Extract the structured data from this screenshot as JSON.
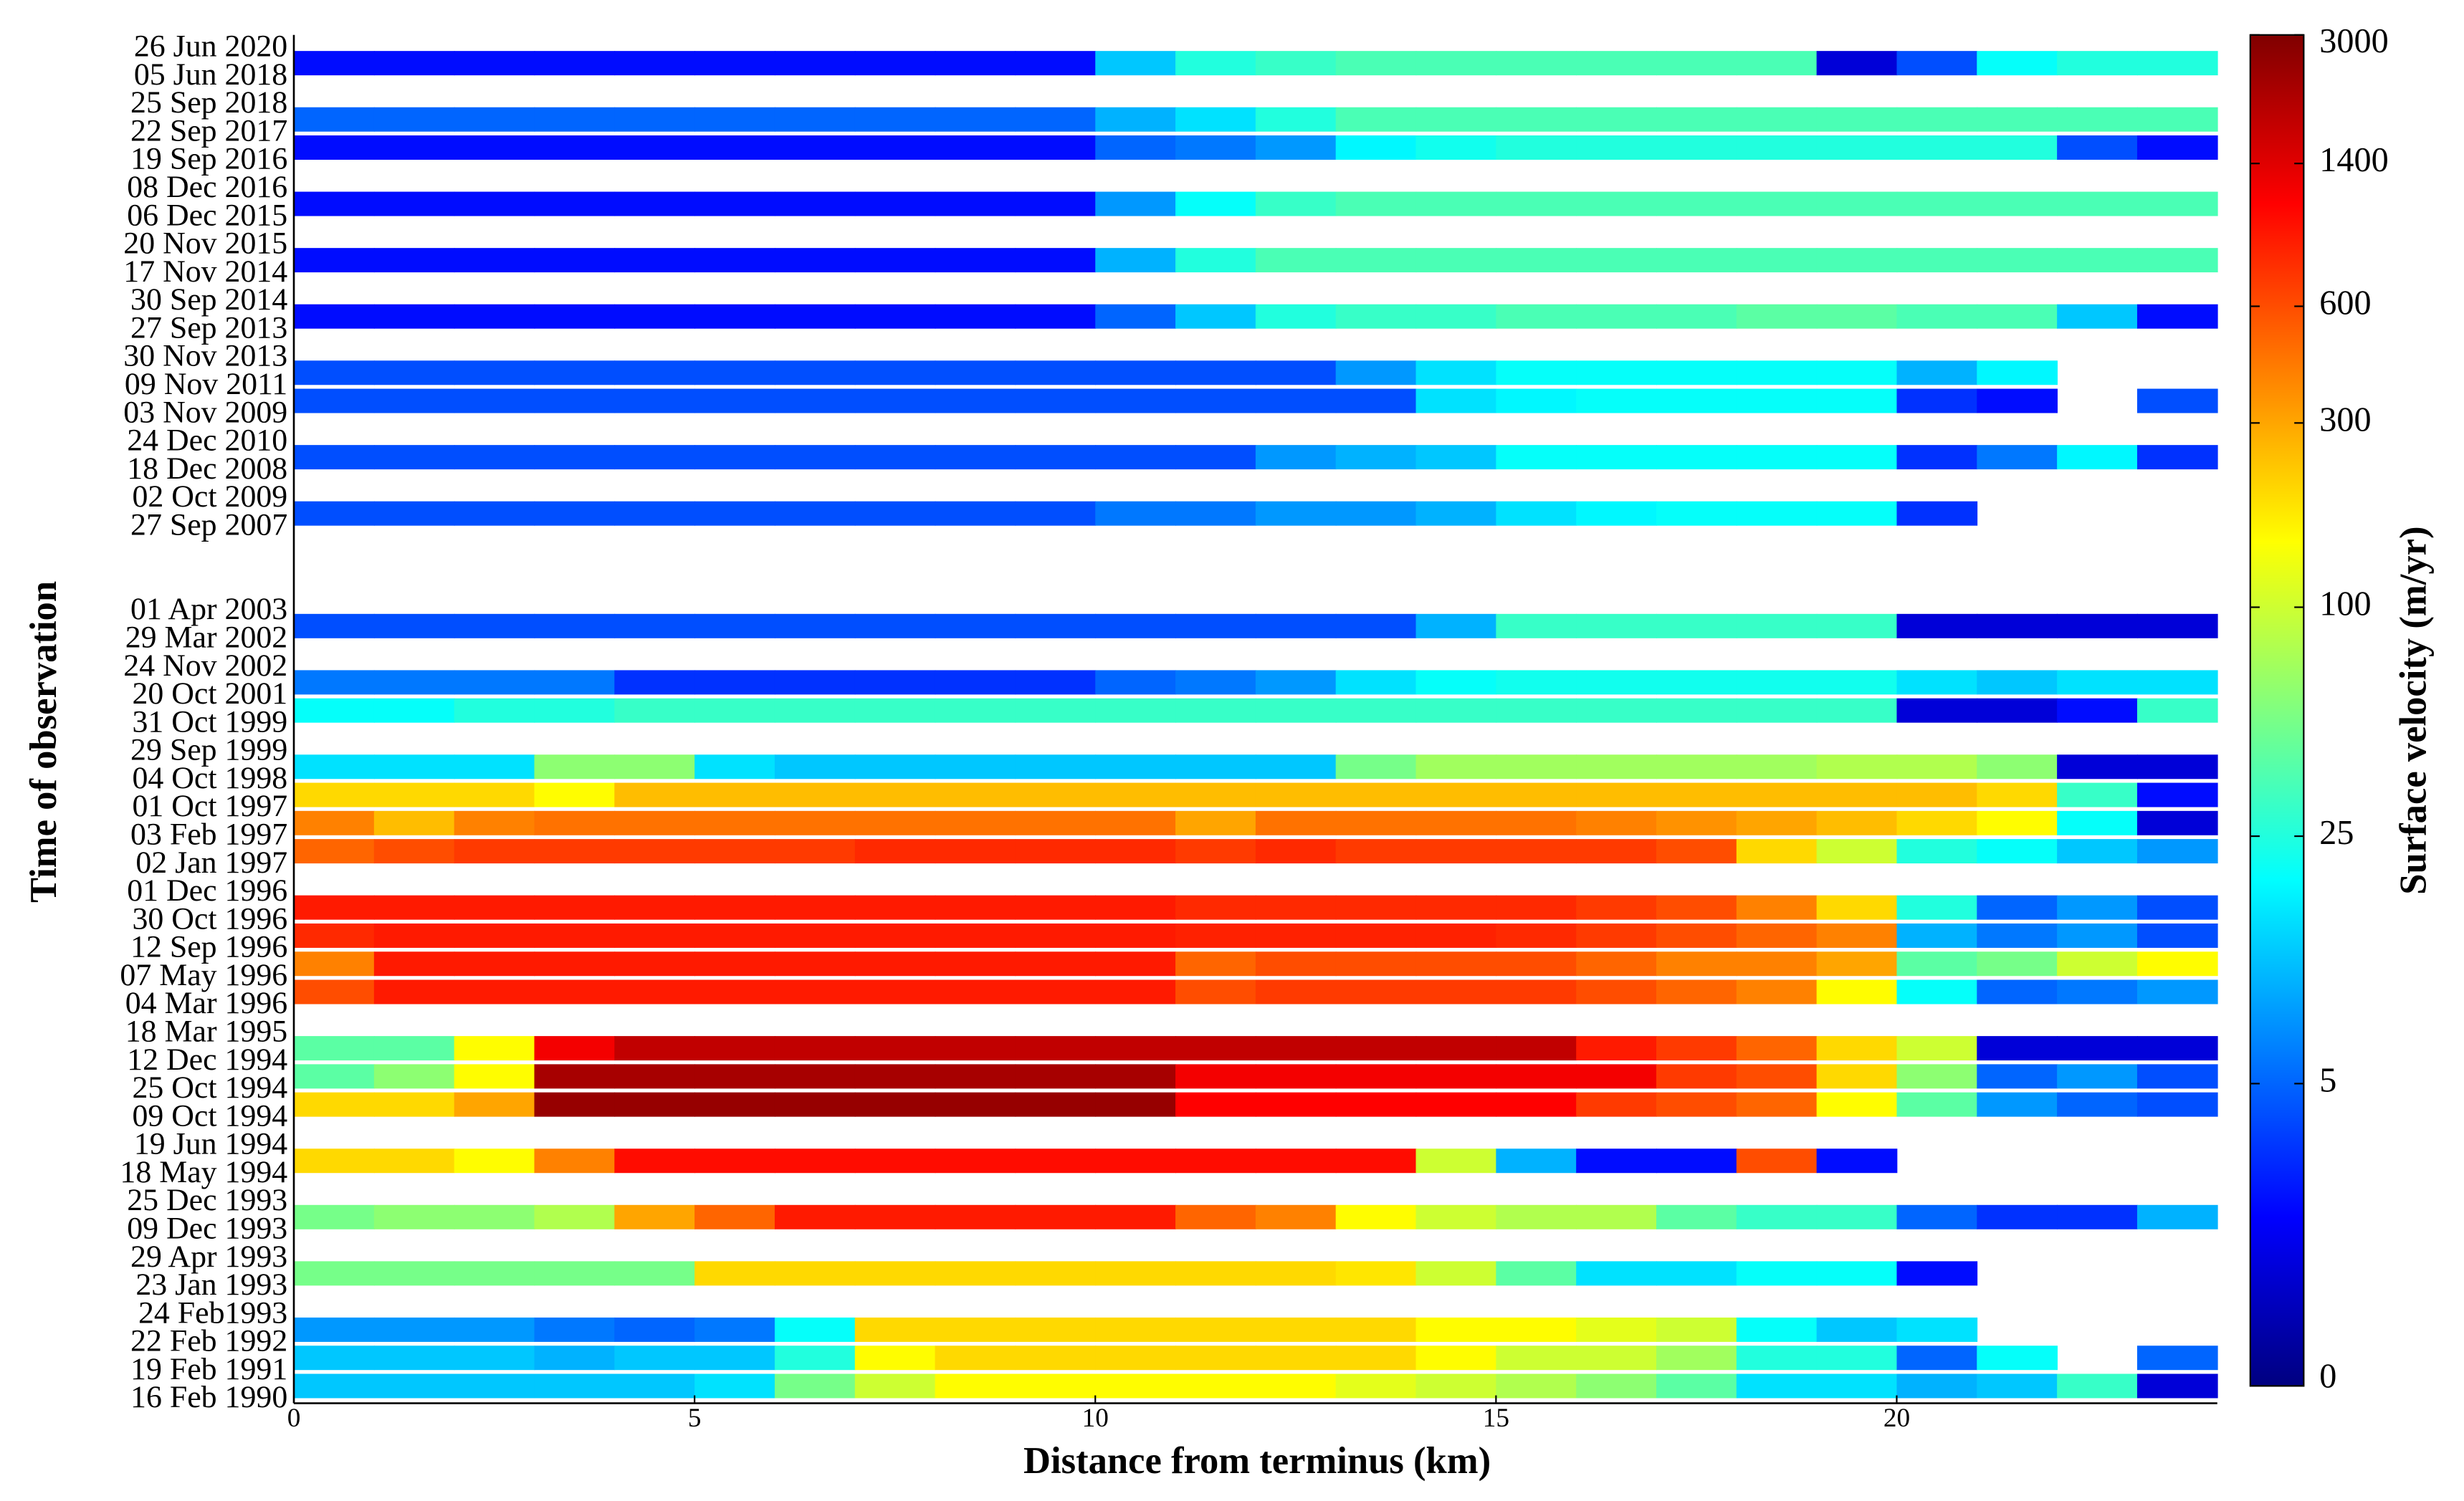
{
  "chart_data": {
    "type": "heatmap",
    "xlabel": "Distance from terminus (km)",
    "ylabel": "Time of observation",
    "colorbar_label": "Surface velocity (m/yr)",
    "categories": [
      "26 Jun 2020",
      "05 Jun 2018",
      "25 Sep 2018",
      "22 Sep 2017",
      "19 Sep 2016",
      "08 Dec 2016",
      "06 Dec 2015",
      "20 Nov 2015",
      "17 Nov 2014",
      "30 Sep 2014",
      "27 Sep 2013",
      "30 Nov 2013",
      "09 Nov 2011",
      "03 Nov 2009",
      "24 Dec 2010",
      "18 Dec 2008",
      "02 Oct 2009",
      "27 Sep 2007",
      null,
      null,
      "01 Apr 2003",
      "29 Mar 2002",
      "24 Nov 2002",
      "20 Oct 2001",
      "31 Oct 1999",
      "29 Sep 1999",
      "04 Oct 1998",
      "01 Oct 1997",
      "03 Feb 1997",
      "02 Jan 1997",
      "01 Dec 1996",
      "30 Oct 1996",
      "12 Sep 1996",
      "07 May 1996",
      "04 Mar 1996",
      "18 Mar 1995",
      "12 Dec 1994",
      "25 Oct 1994",
      "09 Oct 1994",
      "19 Jun 1994",
      "18 May 1994",
      "25 Dec 1993",
      "09 Dec 1993",
      "29 Apr 1993",
      "23 Jan 1993",
      "24 Feb1993",
      "22 Feb 1992",
      "19 Feb 1991",
      "16 Feb 1990"
    ],
    "bins": [
      0,
      1,
      2,
      3,
      4,
      5,
      6,
      7,
      8,
      9,
      10,
      11,
      12,
      13,
      14,
      15,
      16,
      17,
      18,
      19,
      20,
      21,
      22,
      23,
      24
    ],
    "xlim": [
      0,
      24
    ],
    "xticks": [
      0,
      5,
      10,
      15,
      20
    ],
    "clim": [
      0,
      3000
    ],
    "cticks": [
      0,
      5,
      25,
      100,
      300,
      600,
      1400,
      3000
    ],
    "color_scale": "log1p",
    "colormap": "jet",
    "strips": [
      {
        "rows": [
          0,
          1
        ],
        "values": [
          2,
          2,
          2,
          2,
          2,
          2,
          2,
          2,
          2,
          2,
          12,
          25,
          30,
          35,
          35,
          35,
          35,
          35,
          35,
          1,
          4,
          20,
          25,
          25
        ]
      },
      {
        "rows": [
          2,
          3
        ],
        "values": [
          5,
          5,
          5,
          5,
          5,
          5,
          5,
          5,
          5,
          5,
          10,
          15,
          25,
          35,
          35,
          35,
          35,
          35,
          35,
          35,
          35,
          35,
          35,
          35
        ]
      },
      {
        "rows": [
          3,
          4
        ],
        "values": [
          2,
          2,
          2,
          2,
          2,
          2,
          2,
          2,
          2,
          2,
          5,
          6,
          8,
          18,
          22,
          25,
          25,
          25,
          25,
          25,
          25,
          25,
          4,
          2
        ]
      },
      {
        "rows": [
          5,
          6
        ],
        "values": [
          2,
          2,
          2,
          2,
          2,
          2,
          2,
          2,
          2,
          2,
          8,
          20,
          30,
          35,
          35,
          35,
          35,
          35,
          35,
          35,
          35,
          35,
          35,
          35
        ]
      },
      {
        "rows": [
          7,
          8
        ],
        "values": [
          2,
          2,
          2,
          2,
          2,
          2,
          2,
          2,
          2,
          2,
          10,
          25,
          35,
          35,
          35,
          35,
          35,
          35,
          35,
          35,
          35,
          35,
          35,
          35
        ]
      },
      {
        "rows": [
          9,
          10
        ],
        "values": [
          2,
          2,
          2,
          2,
          2,
          2,
          2,
          2,
          2,
          2,
          5,
          12,
          25,
          30,
          30,
          35,
          35,
          35,
          40,
          40,
          35,
          35,
          12,
          2
        ]
      },
      {
        "rows": [
          11,
          12
        ],
        "values": [
          4,
          4,
          4,
          4,
          4,
          4,
          4,
          4,
          4,
          4,
          4,
          4,
          4,
          8,
          15,
          20,
          20,
          20,
          20,
          20,
          10,
          18,
          null,
          null
        ]
      },
      {
        "rows": [
          12,
          13
        ],
        "values": [
          4,
          4,
          4,
          4,
          4,
          4,
          4,
          4,
          4,
          4,
          4,
          4,
          4,
          4,
          15,
          18,
          20,
          20,
          20,
          20,
          3,
          2,
          null,
          4
        ]
      },
      {
        "rows": [
          14,
          15
        ],
        "values": [
          4,
          4,
          4,
          4,
          4,
          4,
          4,
          4,
          4,
          4,
          4,
          4,
          8,
          10,
          12,
          20,
          20,
          20,
          20,
          20,
          3,
          6,
          18,
          3
        ]
      },
      {
        "rows": [
          16,
          17
        ],
        "values": [
          4,
          4,
          4,
          4,
          4,
          4,
          4,
          4,
          4,
          4,
          6,
          6,
          8,
          8,
          10,
          15,
          18,
          20,
          20,
          20,
          3,
          null,
          null,
          null
        ]
      },
      {
        "rows": [
          20,
          21
        ],
        "values": [
          4,
          4,
          4,
          4,
          4,
          4,
          4,
          4,
          4,
          4,
          4,
          4,
          4,
          4,
          10,
          30,
          30,
          30,
          30,
          30,
          1,
          1,
          1,
          1
        ]
      },
      {
        "rows": [
          22,
          23
        ],
        "values": [
          6,
          6,
          6,
          6,
          3,
          3,
          3,
          3,
          3,
          3,
          5,
          6,
          8,
          15,
          20,
          22,
          22,
          22,
          22,
          22,
          15,
          12,
          15,
          15
        ]
      },
      {
        "rows": [
          23,
          24
        ],
        "values": [
          20,
          20,
          25,
          25,
          30,
          30,
          30,
          30,
          30,
          30,
          30,
          30,
          30,
          30,
          30,
          30,
          30,
          30,
          30,
          30,
          1,
          1,
          2,
          30
        ]
      },
      {
        "rows": [
          25,
          26
        ],
        "values": [
          15,
          15,
          15,
          60,
          60,
          15,
          12,
          12,
          12,
          12,
          12,
          12,
          12,
          50,
          70,
          70,
          70,
          70,
          70,
          80,
          80,
          60,
          1,
          1
        ]
      },
      {
        "rows": [
          26,
          27
        ],
        "values": [
          200,
          200,
          200,
          150,
          250,
          250,
          250,
          250,
          250,
          250,
          250,
          250,
          250,
          250,
          250,
          250,
          250,
          250,
          250,
          250,
          250,
          200,
          30,
          2
        ]
      },
      {
        "rows": [
          27,
          28
        ],
        "values": [
          400,
          250,
          400,
          450,
          450,
          450,
          450,
          450,
          450,
          450,
          450,
          300,
          450,
          450,
          450,
          450,
          400,
          350,
          300,
          250,
          200,
          150,
          20,
          1
        ]
      },
      {
        "rows": [
          28,
          29
        ],
        "values": [
          500,
          600,
          700,
          700,
          700,
          700,
          700,
          800,
          800,
          800,
          800,
          700,
          800,
          700,
          700,
          700,
          700,
          600,
          200,
          100,
          25,
          20,
          12,
          8
        ]
      },
      {
        "rows": [
          30,
          31
        ],
        "values": [
          900,
          900,
          900,
          900,
          900,
          900,
          900,
          900,
          900,
          900,
          900,
          800,
          800,
          800,
          800,
          800,
          700,
          600,
          400,
          200,
          25,
          5,
          8,
          4
        ]
      },
      {
        "rows": [
          31,
          32
        ],
        "values": [
          800,
          900,
          900,
          900,
          900,
          900,
          900,
          900,
          900,
          900,
          900,
          850,
          850,
          850,
          850,
          800,
          700,
          600,
          500,
          400,
          10,
          6,
          8,
          4
        ]
      },
      {
        "rows": [
          32,
          33
        ],
        "values": [
          400,
          900,
          900,
          900,
          900,
          900,
          900,
          900,
          900,
          900,
          900,
          500,
          600,
          600,
          600,
          600,
          500,
          400,
          400,
          300,
          40,
          50,
          100,
          150
        ]
      },
      {
        "rows": [
          33,
          34
        ],
        "values": [
          600,
          900,
          900,
          900,
          900,
          900,
          900,
          900,
          900,
          900,
          900,
          600,
          700,
          700,
          700,
          700,
          600,
          500,
          400,
          150,
          20,
          5,
          6,
          8
        ]
      },
      {
        "rows": [
          35,
          36
        ],
        "values": [
          40,
          40,
          150,
          1200,
          1800,
          1800,
          1800,
          1800,
          1800,
          1800,
          1800,
          1800,
          1800,
          1800,
          1800,
          1800,
          900,
          700,
          500,
          200,
          100,
          1,
          1,
          1
        ]
      },
      {
        "rows": [
          36,
          37
        ],
        "values": [
          40,
          60,
          150,
          2200,
          2200,
          2200,
          2200,
          2200,
          2200,
          2200,
          2200,
          1200,
          1200,
          1200,
          1200,
          1200,
          1200,
          700,
          600,
          200,
          60,
          5,
          8,
          4
        ]
      },
      {
        "rows": [
          37,
          38
        ],
        "values": [
          200,
          200,
          300,
          2500,
          2500,
          2500,
          2500,
          2500,
          2500,
          2500,
          2500,
          1100,
          1100,
          1100,
          1100,
          1100,
          700,
          600,
          500,
          150,
          40,
          8,
          5,
          4
        ]
      },
      {
        "rows": [
          39,
          40
        ],
        "values": [
          200,
          200,
          150,
          400,
          1000,
          1000,
          1000,
          1000,
          1000,
          1000,
          1000,
          1000,
          1000,
          1000,
          100,
          10,
          2,
          2,
          600,
          2,
          null,
          null,
          null,
          null
        ]
      },
      {
        "rows": [
          41,
          42
        ],
        "values": [
          50,
          60,
          60,
          80,
          300,
          500,
          900,
          900,
          900,
          900,
          900,
          500,
          400,
          150,
          100,
          80,
          80,
          40,
          30,
          30,
          5,
          3,
          3,
          10
        ]
      },
      {
        "rows": [
          43,
          44
        ],
        "values": [
          50,
          50,
          50,
          50,
          50,
          200,
          200,
          200,
          200,
          200,
          200,
          200,
          200,
          180,
          100,
          40,
          15,
          15,
          20,
          20,
          2,
          null,
          null,
          null
        ]
      },
      {
        "rows": [
          45,
          46
        ],
        "values": [
          8,
          8,
          8,
          6,
          5,
          6,
          20,
          200,
          200,
          200,
          200,
          200,
          200,
          200,
          150,
          150,
          120,
          100,
          20,
          12,
          15,
          null,
          null,
          null
        ]
      },
      {
        "rows": [
          46,
          47
        ],
        "values": [
          12,
          12,
          12,
          10,
          12,
          12,
          25,
          150,
          200,
          200,
          200,
          200,
          200,
          200,
          150,
          100,
          100,
          70,
          25,
          25,
          5,
          20,
          null,
          5
        ]
      },
      {
        "rows": [
          47,
          48
        ],
        "values": [
          12,
          12,
          12,
          12,
          12,
          15,
          50,
          100,
          150,
          150,
          150,
          150,
          150,
          120,
          100,
          80,
          60,
          40,
          15,
          15,
          10,
          12,
          30,
          1
        ]
      }
    ]
  }
}
